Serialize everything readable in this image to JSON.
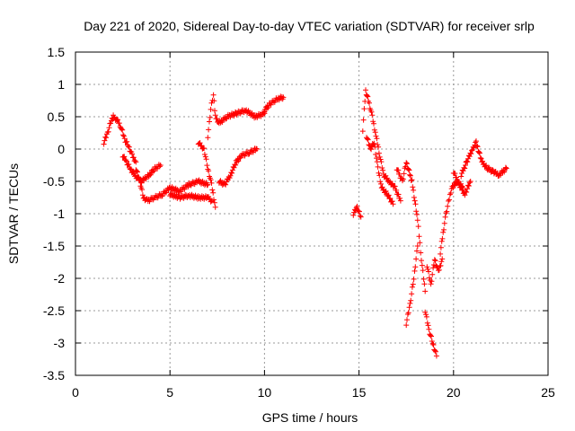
{
  "chart_data": {
    "type": "scatter",
    "title": "Day 221 of 2020, Sidereal Day-to-day VTEC variation (SDTVAR) for receiver srlp",
    "xlabel": "GPS time / hours",
    "ylabel": "SDTVAR / TECUs",
    "xlim": [
      0,
      25
    ],
    "ylim": [
      -3.5,
      1.5
    ],
    "xticks": [
      0,
      5,
      10,
      15,
      20,
      25
    ],
    "yticks": [
      -3.5,
      -3,
      -2.5,
      -2,
      -1.5,
      -1,
      -0.5,
      0,
      0.5,
      1,
      1.5
    ],
    "xtick_labels": [
      "0",
      "5",
      "10",
      "15",
      "20",
      "25"
    ],
    "ytick_labels": [
      "-3.5",
      "-3",
      "-2.5",
      "-2",
      "-1.5",
      "-1",
      "-0.5",
      "0",
      "0.5",
      "1",
      "1.5"
    ],
    "grid": true,
    "marker": "plus",
    "marker_color": "#ff0000",
    "series": [
      {
        "name": "srlp",
        "segments": [
          [
            [
              1.5,
              0.1
            ],
            [
              1.7,
              0.25
            ],
            [
              1.9,
              0.45
            ],
            [
              2.0,
              0.5
            ],
            [
              2.2,
              0.45
            ],
            [
              2.4,
              0.35
            ],
            [
              2.6,
              0.15
            ],
            [
              2.8,
              0.05
            ],
            [
              3.0,
              -0.1
            ],
            [
              3.2,
              -0.2
            ]
          ],
          [
            [
              2.5,
              -0.1
            ],
            [
              2.7,
              -0.2
            ],
            [
              2.9,
              -0.3
            ],
            [
              3.1,
              -0.4
            ],
            [
              3.3,
              -0.45
            ],
            [
              3.5,
              -0.5
            ],
            [
              3.7,
              -0.45
            ],
            [
              3.9,
              -0.4
            ],
            [
              4.2,
              -0.3
            ],
            [
              4.5,
              -0.25
            ]
          ],
          [
            [
              3.2,
              -0.3
            ],
            [
              3.4,
              -0.5
            ],
            [
              3.6,
              -0.75
            ],
            [
              3.8,
              -0.8
            ],
            [
              4.2,
              -0.75
            ],
            [
              4.6,
              -0.7
            ],
            [
              5.0,
              -0.6
            ],
            [
              5.5,
              -0.65
            ],
            [
              6.0,
              -0.55
            ],
            [
              6.5,
              -0.5
            ],
            [
              7.0,
              -0.55
            ]
          ],
          [
            [
              5.0,
              -0.7
            ],
            [
              5.5,
              -0.75
            ],
            [
              6.0,
              -0.72
            ],
            [
              6.5,
              -0.75
            ],
            [
              7.0,
              -0.75
            ],
            [
              7.2,
              -0.8
            ]
          ],
          [
            [
              6.5,
              0.1
            ],
            [
              6.8,
              0.0
            ],
            [
              7.0,
              -0.3
            ],
            [
              7.2,
              -0.55
            ],
            [
              7.4,
              -0.9
            ]
          ],
          [
            [
              7.0,
              0.2
            ],
            [
              7.2,
              0.7
            ],
            [
              7.3,
              0.85
            ],
            [
              7.4,
              0.5
            ],
            [
              7.6,
              0.4
            ],
            [
              8.0,
              0.5
            ],
            [
              8.5,
              0.55
            ],
            [
              9.0,
              0.6
            ],
            [
              9.5,
              0.5
            ],
            [
              10.0,
              0.55
            ]
          ],
          [
            [
              7.6,
              -0.5
            ],
            [
              7.9,
              -0.55
            ],
            [
              8.2,
              -0.4
            ],
            [
              8.5,
              -0.2
            ],
            [
              8.8,
              -0.1
            ],
            [
              9.2,
              -0.05
            ],
            [
              9.6,
              0.0
            ]
          ],
          [
            [
              10.0,
              0.6
            ],
            [
              10.3,
              0.7
            ],
            [
              10.7,
              0.78
            ],
            [
              11.0,
              0.8
            ]
          ],
          [
            [
              14.7,
              -1.0
            ],
            [
              14.9,
              -0.9
            ],
            [
              15.1,
              -1.05
            ]
          ],
          [
            [
              15.2,
              0.3
            ],
            [
              15.35,
              0.9
            ],
            [
              15.5,
              0.75
            ],
            [
              15.7,
              0.5
            ],
            [
              15.9,
              0.2
            ],
            [
              16.1,
              -0.1
            ],
            [
              16.3,
              -0.4
            ],
            [
              16.6,
              -0.5
            ],
            [
              16.9,
              -0.6
            ],
            [
              17.2,
              -0.8
            ]
          ],
          [
            [
              15.4,
              0.2
            ],
            [
              15.6,
              0.0
            ],
            [
              15.8,
              0.1
            ],
            [
              16.0,
              -0.3
            ],
            [
              16.2,
              -0.6
            ],
            [
              16.5,
              -0.7
            ],
            [
              16.8,
              -0.85
            ]
          ],
          [
            [
              17.0,
              -0.3
            ],
            [
              17.3,
              -0.5
            ],
            [
              17.5,
              -0.2
            ],
            [
              17.8,
              -0.5
            ],
            [
              18.1,
              -1.1
            ],
            [
              18.3,
              -1.7
            ],
            [
              18.5,
              -2.2
            ]
          ],
          [
            [
              17.5,
              -2.7
            ],
            [
              17.7,
              -2.4
            ],
            [
              17.9,
              -2.0
            ],
            [
              18.1,
              -1.5
            ]
          ],
          [
            [
              18.6,
              -1.8
            ],
            [
              18.8,
              -2.1
            ],
            [
              19.0,
              -1.7
            ],
            [
              19.2,
              -1.9
            ],
            [
              19.4,
              -1.7
            ]
          ],
          [
            [
              18.5,
              -2.5
            ],
            [
              18.7,
              -2.8
            ],
            [
              18.9,
              -3.0
            ],
            [
              19.1,
              -3.2
            ]
          ],
          [
            [
              19.3,
              -1.6
            ],
            [
              19.6,
              -1.0
            ],
            [
              19.9,
              -0.6
            ],
            [
              20.2,
              -0.5
            ],
            [
              20.5,
              -0.6
            ]
          ],
          [
            [
              20.4,
              -0.4
            ],
            [
              20.7,
              -0.2
            ],
            [
              21.0,
              0.0
            ],
            [
              21.2,
              0.1
            ],
            [
              21.5,
              -0.2
            ],
            [
              21.8,
              -0.3
            ],
            [
              22.1,
              -0.35
            ],
            [
              22.4,
              -0.4
            ],
            [
              22.8,
              -0.3
            ]
          ],
          [
            [
              20.0,
              -0.35
            ],
            [
              20.3,
              -0.55
            ],
            [
              20.6,
              -0.7
            ],
            [
              20.9,
              -0.5
            ]
          ]
        ]
      }
    ]
  }
}
